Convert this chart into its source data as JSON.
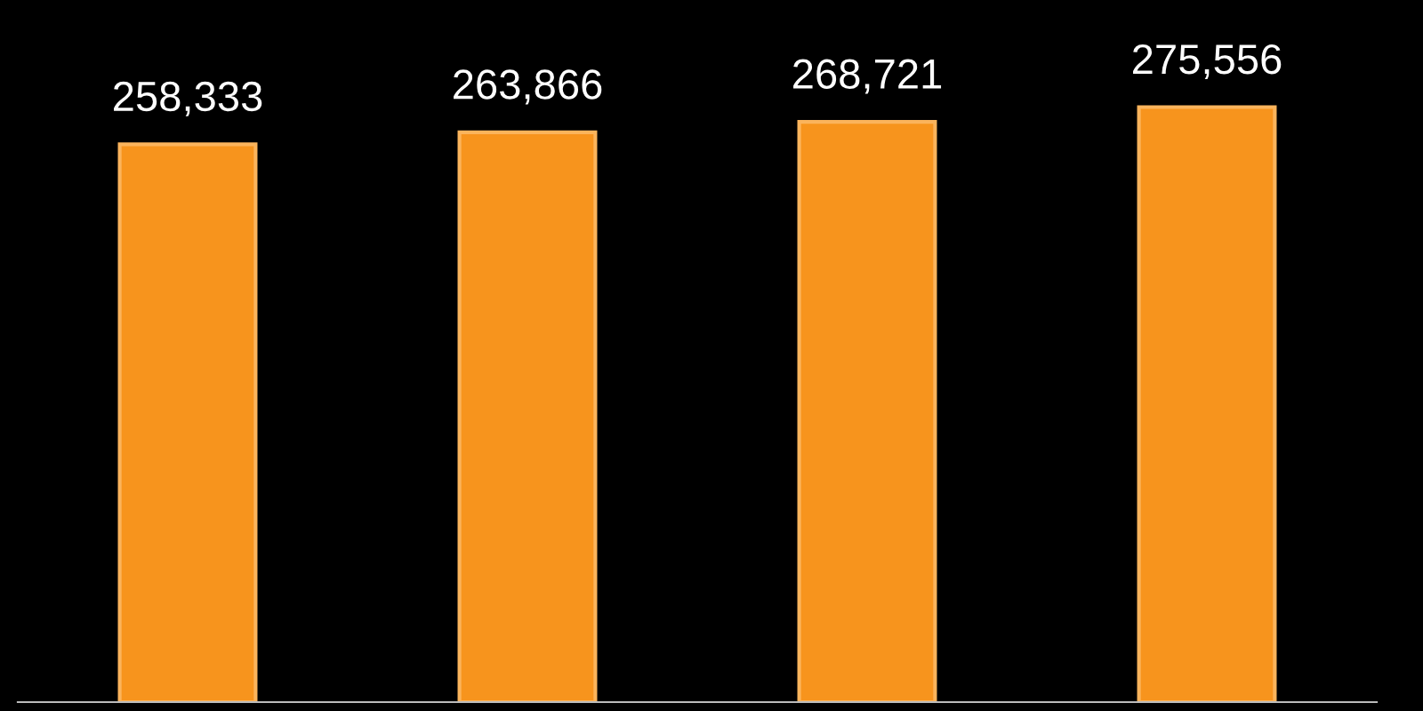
{
  "chart_data": {
    "type": "bar",
    "categories": [
      null,
      null,
      null,
      null
    ],
    "values": [
      258333,
      263866,
      268721,
      275556
    ],
    "value_labels": [
      "258,333",
      "263,866",
      "268,721",
      "275,556"
    ],
    "color": "#f7941d",
    "grid": false,
    "legend": false
  }
}
